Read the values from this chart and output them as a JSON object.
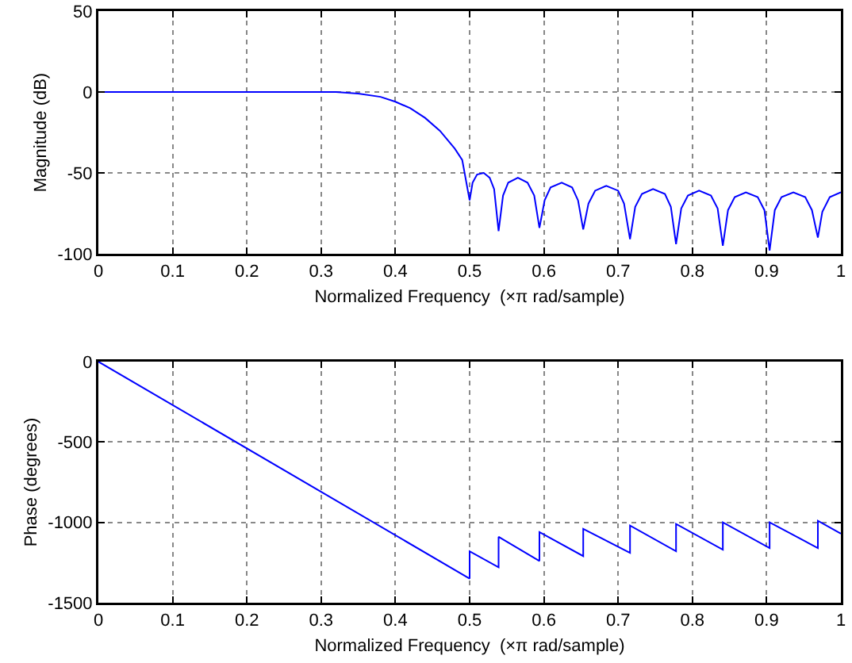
{
  "chart_data": [
    {
      "type": "line",
      "xlabel": "Normalized Frequency  (×π rad/sample)",
      "ylabel": "Magnitude (dB)",
      "xlim": [
        0,
        1
      ],
      "ylim": [
        -100,
        50
      ],
      "xticks": [
        0,
        0.1,
        0.2,
        0.3,
        0.4,
        0.5,
        0.6,
        0.7,
        0.8,
        0.9,
        1
      ],
      "yticks": [
        -100,
        -50,
        0,
        50
      ],
      "grid": true,
      "line_style": "solid",
      "series": [
        {
          "color": "#0000ff",
          "x": [
            0,
            0.1,
            0.2,
            0.3,
            0.32,
            0.35,
            0.38,
            0.4,
            0.42,
            0.44,
            0.46,
            0.48,
            0.49,
            0.5,
            0.504,
            0.51,
            0.519,
            0.527,
            0.533,
            0.539,
            0.545,
            0.552,
            0.565,
            0.578,
            0.587,
            0.594,
            0.601,
            0.609,
            0.624,
            0.638,
            0.646,
            0.653,
            0.66,
            0.669,
            0.684,
            0.7,
            0.708,
            0.716,
            0.723,
            0.732,
            0.747,
            0.763,
            0.771,
            0.778,
            0.785,
            0.794,
            0.809,
            0.825,
            0.834,
            0.841,
            0.848,
            0.857,
            0.872,
            0.888,
            0.897,
            0.904,
            0.911,
            0.92,
            0.936,
            0.952,
            0.961,
            0.969,
            0.975,
            0.985,
            1
          ],
          "values": [
            0,
            0,
            0,
            0,
            0,
            -1,
            -3,
            -6,
            -10,
            -16,
            -24,
            -35,
            -42,
            -67,
            -56,
            -51,
            -50,
            -53,
            -60,
            -86,
            -64,
            -56,
            -53,
            -56,
            -64,
            -84,
            -67,
            -59,
            -56,
            -59,
            -67,
            -85,
            -69,
            -61,
            -58,
            -61,
            -69,
            -91,
            -71,
            -63,
            -60,
            -63,
            -71,
            -94,
            -72,
            -64,
            -61,
            -64,
            -72,
            -95,
            -73,
            -65,
            -62,
            -65,
            -73,
            -98,
            -73,
            -65,
            -62,
            -65,
            -73,
            -90,
            -74,
            -65,
            -62
          ]
        }
      ]
    },
    {
      "type": "line",
      "xlabel": "Normalized Frequency  (×π rad/sample)",
      "ylabel": "Phase (degrees)",
      "xlim": [
        0,
        1
      ],
      "ylim": [
        -1500,
        0
      ],
      "xticks": [
        0,
        0.1,
        0.2,
        0.3,
        0.4,
        0.5,
        0.6,
        0.7,
        0.8,
        0.9,
        1
      ],
      "yticks": [
        -1500,
        -1000,
        -500,
        0
      ],
      "grid": true,
      "line_style": "solid",
      "series": [
        {
          "color": "#0000ff",
          "x": [
            0,
            0.5,
            0.5,
            0.539,
            0.539,
            0.594,
            0.594,
            0.653,
            0.653,
            0.716,
            0.716,
            0.778,
            0.778,
            0.841,
            0.841,
            0.904,
            0.904,
            0.969,
            0.969,
            1
          ],
          "values": [
            0,
            -1350,
            -1180,
            -1280,
            -1090,
            -1240,
            -1060,
            -1210,
            -1040,
            -1190,
            -1020,
            -1180,
            -1010,
            -1170,
            -1000,
            -1160,
            -1000,
            -1160,
            -990,
            -1070
          ]
        }
      ]
    }
  ]
}
